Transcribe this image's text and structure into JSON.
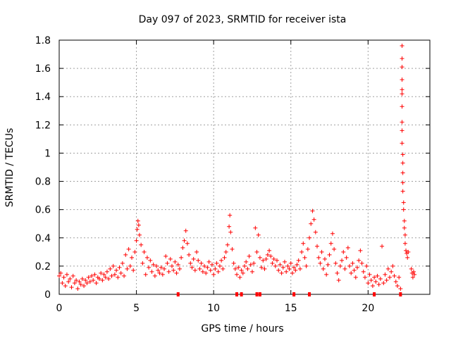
{
  "chart_data": {
    "type": "scatter",
    "title": "Day 097 of 2023, SRMTID for receiver ista",
    "xlabel": "GPS time / hours",
    "ylabel": "SRMTID / TECUs",
    "xlim": [
      0,
      24
    ],
    "ylim": [
      0,
      1.8
    ],
    "xticks": [
      0,
      5,
      10,
      15,
      20
    ],
    "xtick_labels": [
      "0",
      "5",
      "10",
      "15",
      "20"
    ],
    "yticks": [
      0,
      0.2,
      0.4,
      0.6,
      0.8,
      1,
      1.2,
      1.4,
      1.6,
      1.8
    ],
    "ytick_labels": [
      "0",
      "0.2",
      "0.4",
      "0.6",
      "0.8",
      "1",
      "1.2",
      "1.4",
      "1.6",
      "1.8"
    ],
    "grid": true,
    "marker": "+",
    "marker_color": "#ff0000",
    "series": [
      {
        "name": "SRMTID",
        "points": [
          [
            0.0,
            0.13
          ],
          [
            0.1,
            0.15
          ],
          [
            0.2,
            0.08
          ],
          [
            0.3,
            0.12
          ],
          [
            0.4,
            0.06
          ],
          [
            0.5,
            0.14
          ],
          [
            0.6,
            0.09
          ],
          [
            0.7,
            0.11
          ],
          [
            0.8,
            0.05
          ],
          [
            0.9,
            0.13
          ],
          [
            1.0,
            0.08
          ],
          [
            1.1,
            0.1
          ],
          [
            1.2,
            0.04
          ],
          [
            1.3,
            0.09
          ],
          [
            1.4,
            0.07
          ],
          [
            1.5,
            0.11
          ],
          [
            1.6,
            0.06
          ],
          [
            1.7,
            0.1
          ],
          [
            1.8,
            0.08
          ],
          [
            1.9,
            0.12
          ],
          [
            2.0,
            0.09
          ],
          [
            2.1,
            0.13
          ],
          [
            2.2,
            0.1
          ],
          [
            2.3,
            0.14
          ],
          [
            2.4,
            0.08
          ],
          [
            2.5,
            0.12
          ],
          [
            2.6,
            0.11
          ],
          [
            2.7,
            0.15
          ],
          [
            2.8,
            0.1
          ],
          [
            2.9,
            0.14
          ],
          [
            3.0,
            0.12
          ],
          [
            3.1,
            0.16
          ],
          [
            3.2,
            0.11
          ],
          [
            3.3,
            0.18
          ],
          [
            3.4,
            0.13
          ],
          [
            3.5,
            0.2
          ],
          [
            3.6,
            0.14
          ],
          [
            3.7,
            0.17
          ],
          [
            3.8,
            0.12
          ],
          [
            3.9,
            0.19
          ],
          [
            4.0,
            0.15
          ],
          [
            4.1,
            0.22
          ],
          [
            4.2,
            0.13
          ],
          [
            4.3,
            0.28
          ],
          [
            4.4,
            0.18
          ],
          [
            4.5,
            0.32
          ],
          [
            4.6,
            0.2
          ],
          [
            4.7,
            0.26
          ],
          [
            4.8,
            0.17
          ],
          [
            4.9,
            0.3
          ],
          [
            5.0,
            0.38
          ],
          [
            5.05,
            0.46
          ],
          [
            5.1,
            0.52
          ],
          [
            5.15,
            0.49
          ],
          [
            5.2,
            0.42
          ],
          [
            5.3,
            0.35
          ],
          [
            5.4,
            0.22
          ],
          [
            5.5,
            0.3
          ],
          [
            5.6,
            0.14
          ],
          [
            5.7,
            0.26
          ],
          [
            5.8,
            0.19
          ],
          [
            5.9,
            0.24
          ],
          [
            6.0,
            0.16
          ],
          [
            6.1,
            0.21
          ],
          [
            6.2,
            0.13
          ],
          [
            6.3,
            0.2
          ],
          [
            6.4,
            0.17
          ],
          [
            6.5,
            0.15
          ],
          [
            6.6,
            0.19
          ],
          [
            6.7,
            0.14
          ],
          [
            6.8,
            0.18
          ],
          [
            6.9,
            0.27
          ],
          [
            7.0,
            0.22
          ],
          [
            7.1,
            0.16
          ],
          [
            7.2,
            0.25
          ],
          [
            7.3,
            0.2
          ],
          [
            7.4,
            0.17
          ],
          [
            7.5,
            0.23
          ],
          [
            7.6,
            0.15
          ],
          [
            7.7,
            0.21
          ],
          [
            7.8,
            0.18
          ],
          [
            7.9,
            0.26
          ],
          [
            8.0,
            0.33
          ],
          [
            8.1,
            0.38
          ],
          [
            8.2,
            0.45
          ],
          [
            8.3,
            0.36
          ],
          [
            8.4,
            0.28
          ],
          [
            8.5,
            0.22
          ],
          [
            8.6,
            0.19
          ],
          [
            8.7,
            0.25
          ],
          [
            8.8,
            0.17
          ],
          [
            8.9,
            0.3
          ],
          [
            9.0,
            0.24
          ],
          [
            9.1,
            0.18
          ],
          [
            9.2,
            0.22
          ],
          [
            9.3,
            0.16
          ],
          [
            9.4,
            0.2
          ],
          [
            9.5,
            0.15
          ],
          [
            9.6,
            0.19
          ],
          [
            9.7,
            0.23
          ],
          [
            9.8,
            0.17
          ],
          [
            9.9,
            0.21
          ],
          [
            10.0,
            0.14
          ],
          [
            10.1,
            0.18
          ],
          [
            10.2,
            0.22
          ],
          [
            10.3,
            0.16
          ],
          [
            10.4,
            0.2
          ],
          [
            10.5,
            0.24
          ],
          [
            10.6,
            0.18
          ],
          [
            10.7,
            0.26
          ],
          [
            10.8,
            0.3
          ],
          [
            10.9,
            0.35
          ],
          [
            11.0,
            0.48
          ],
          [
            11.05,
            0.56
          ],
          [
            11.1,
            0.44
          ],
          [
            11.2,
            0.32
          ],
          [
            11.3,
            0.22
          ],
          [
            11.4,
            0.18
          ],
          [
            11.5,
            0.14
          ],
          [
            11.6,
            0.19
          ],
          [
            11.7,
            0.12
          ],
          [
            11.8,
            0.17
          ],
          [
            11.9,
            0.15
          ],
          [
            12.0,
            0.2
          ],
          [
            12.1,
            0.23
          ],
          [
            12.2,
            0.18
          ],
          [
            12.3,
            0.27
          ],
          [
            12.4,
            0.21
          ],
          [
            12.5,
            0.16
          ],
          [
            12.6,
            0.22
          ],
          [
            12.7,
            0.47
          ],
          [
            12.8,
            0.3
          ],
          [
            12.9,
            0.42
          ],
          [
            13.0,
            0.26
          ],
          [
            13.1,
            0.19
          ],
          [
            13.2,
            0.24
          ],
          [
            13.3,
            0.18
          ],
          [
            13.4,
            0.25
          ],
          [
            13.5,
            0.28
          ],
          [
            13.6,
            0.31
          ],
          [
            13.7,
            0.27
          ],
          [
            13.8,
            0.22
          ],
          [
            13.9,
            0.25
          ],
          [
            14.0,
            0.2
          ],
          [
            14.1,
            0.24
          ],
          [
            14.2,
            0.17
          ],
          [
            14.3,
            0.21
          ],
          [
            14.4,
            0.15
          ],
          [
            14.5,
            0.19
          ],
          [
            14.6,
            0.23
          ],
          [
            14.7,
            0.16
          ],
          [
            14.8,
            0.2
          ],
          [
            14.9,
            0.18
          ],
          [
            15.0,
            0.22
          ],
          [
            15.1,
            0.15
          ],
          [
            15.2,
            0.19
          ],
          [
            15.3,
            0.17
          ],
          [
            15.4,
            0.21
          ],
          [
            15.5,
            0.24
          ],
          [
            15.6,
            0.18
          ],
          [
            15.7,
            0.3
          ],
          [
            15.8,
            0.36
          ],
          [
            15.9,
            0.26
          ],
          [
            16.0,
            0.2
          ],
          [
            16.1,
            0.32
          ],
          [
            16.2,
            0.4
          ],
          [
            16.3,
            0.5
          ],
          [
            16.4,
            0.59
          ],
          [
            16.5,
            0.53
          ],
          [
            16.6,
            0.44
          ],
          [
            16.7,
            0.34
          ],
          [
            16.8,
            0.26
          ],
          [
            16.9,
            0.22
          ],
          [
            17.0,
            0.3
          ],
          [
            17.1,
            0.18
          ],
          [
            17.2,
            0.25
          ],
          [
            17.3,
            0.14
          ],
          [
            17.4,
            0.21
          ],
          [
            17.5,
            0.28
          ],
          [
            17.6,
            0.36
          ],
          [
            17.7,
            0.43
          ],
          [
            17.8,
            0.32
          ],
          [
            17.9,
            0.22
          ],
          [
            18.0,
            0.15
          ],
          [
            18.1,
            0.1
          ],
          [
            18.2,
            0.2
          ],
          [
            18.3,
            0.24
          ],
          [
            18.4,
            0.3
          ],
          [
            18.5,
            0.18
          ],
          [
            18.6,
            0.26
          ],
          [
            18.7,
            0.33
          ],
          [
            18.8,
            0.2
          ],
          [
            18.9,
            0.15
          ],
          [
            19.0,
            0.22
          ],
          [
            19.1,
            0.17
          ],
          [
            19.2,
            0.12
          ],
          [
            19.3,
            0.19
          ],
          [
            19.4,
            0.24
          ],
          [
            19.5,
            0.31
          ],
          [
            19.6,
            0.22
          ],
          [
            19.7,
            0.16
          ],
          [
            19.8,
            0.12
          ],
          [
            19.9,
            0.2
          ],
          [
            20.0,
            0.08
          ],
          [
            20.1,
            0.14
          ],
          [
            20.2,
            0.1
          ],
          [
            20.3,
            0.06
          ],
          [
            20.4,
            0.12
          ],
          [
            20.5,
            0.09
          ],
          [
            20.6,
            0.13
          ],
          [
            20.7,
            0.07
          ],
          [
            20.8,
            0.11
          ],
          [
            20.9,
            0.34
          ],
          [
            21.0,
            0.08
          ],
          [
            21.1,
            0.14
          ],
          [
            21.2,
            0.1
          ],
          [
            21.3,
            0.18
          ],
          [
            21.4,
            0.12
          ],
          [
            21.5,
            0.16
          ],
          [
            21.6,
            0.2
          ],
          [
            21.7,
            0.13
          ],
          [
            21.8,
            0.09
          ],
          [
            21.9,
            0.06
          ],
          [
            22.0,
            0.12
          ],
          [
            22.1,
            0.04
          ],
          [
            22.2,
            1.76
          ],
          [
            22.2,
            1.67
          ],
          [
            22.2,
            1.61
          ],
          [
            22.2,
            1.52
          ],
          [
            22.2,
            1.45
          ],
          [
            22.2,
            1.42
          ],
          [
            22.2,
            1.33
          ],
          [
            22.2,
            1.22
          ],
          [
            22.2,
            1.16
          ],
          [
            22.2,
            1.07
          ],
          [
            22.25,
            0.99
          ],
          [
            22.25,
            0.93
          ],
          [
            22.25,
            0.86
          ],
          [
            22.25,
            0.79
          ],
          [
            22.25,
            0.73
          ],
          [
            22.3,
            0.65
          ],
          [
            22.3,
            0.6
          ],
          [
            22.35,
            0.52
          ],
          [
            22.35,
            0.47
          ],
          [
            22.4,
            0.42
          ],
          [
            22.4,
            0.36
          ],
          [
            22.45,
            0.31
          ],
          [
            22.5,
            0.29
          ],
          [
            22.55,
            0.26
          ],
          [
            22.6,
            0.3
          ],
          [
            22.8,
            0.18
          ],
          [
            22.85,
            0.15
          ],
          [
            22.9,
            0.12
          ],
          [
            22.95,
            0.16
          ],
          [
            23.0,
            0.14
          ]
        ],
        "zero_markers_x": [
          7.7,
          11.5,
          11.8,
          12.8,
          13.0,
          15.2,
          16.2,
          20.4,
          22.1
        ]
      }
    ]
  }
}
